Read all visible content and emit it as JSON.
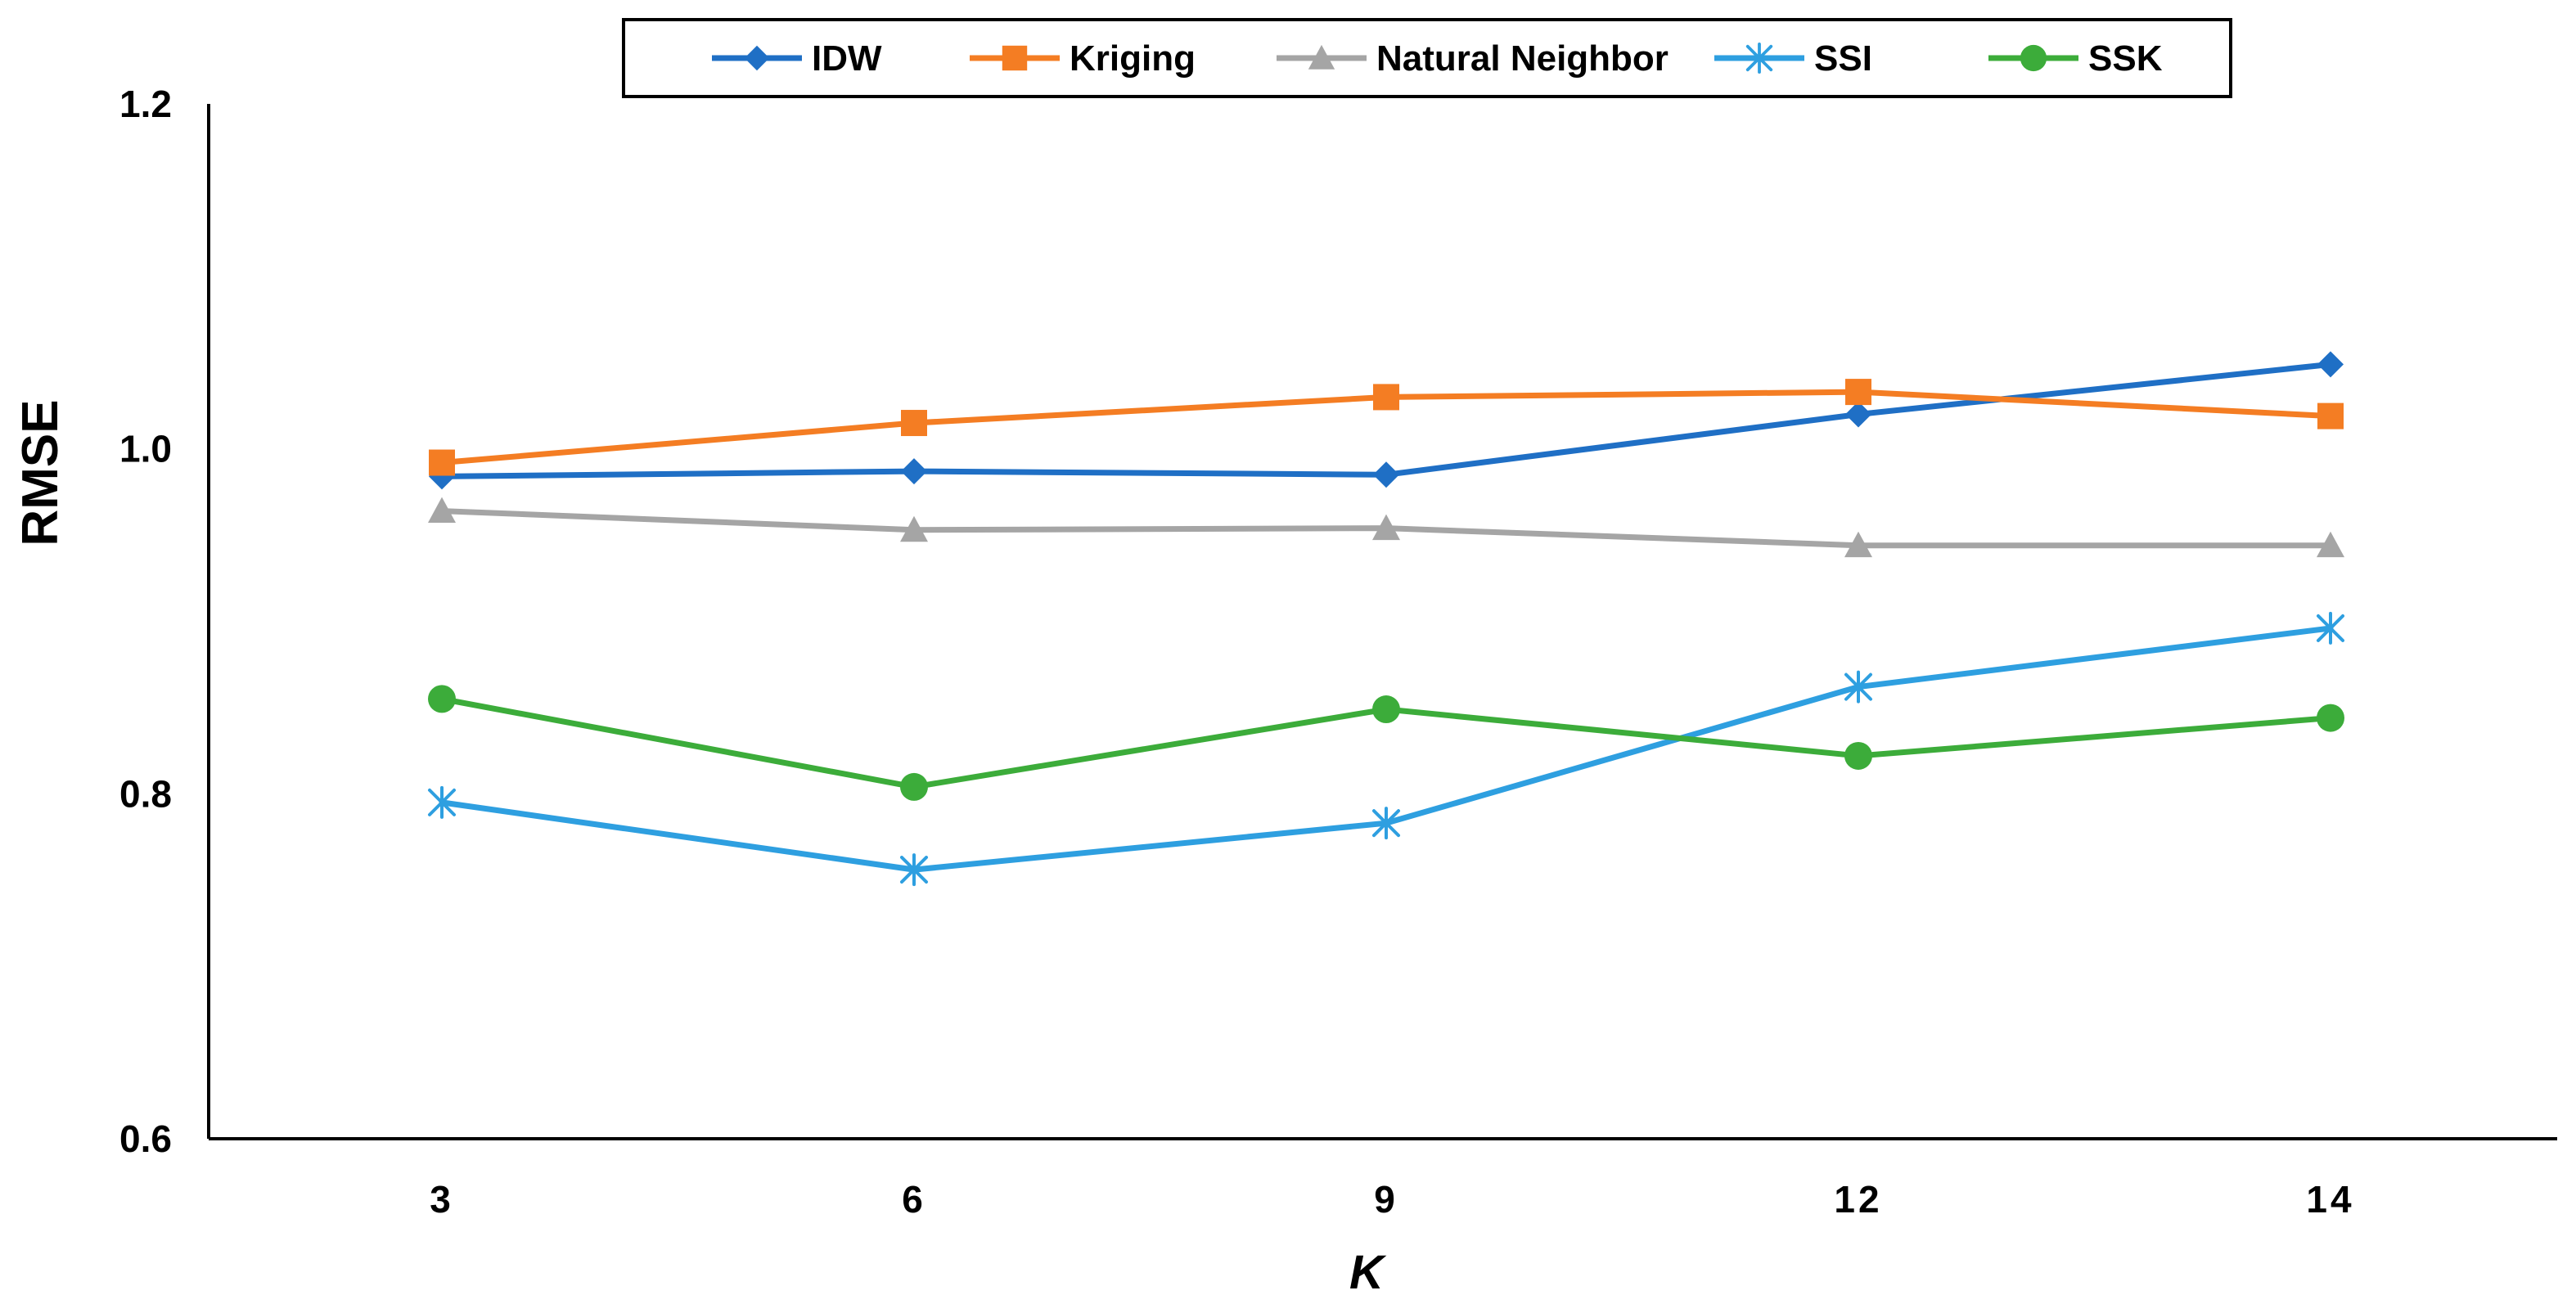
{
  "chart_data": {
    "type": "line",
    "title": "",
    "xlabel": "K",
    "ylabel": "RMSE",
    "categories": [
      "3",
      "6",
      "9",
      "12",
      "14"
    ],
    "ylim": [
      0.6,
      1.2
    ],
    "yticks": [
      "0.6",
      "0.8",
      "1.0",
      "1.2"
    ],
    "ytick_values": [
      0.6,
      0.8,
      1.0,
      1.2
    ],
    "grid": false,
    "legend_position": "top-center",
    "series": [
      {
        "name": "IDW",
        "color": "#1f6fc5",
        "marker": "diamond",
        "values": [
          0.984,
          0.987,
          0.985,
          1.02,
          1.049
        ]
      },
      {
        "name": "Kriging",
        "color": "#f47d23",
        "marker": "square",
        "values": [
          0.992,
          1.015,
          1.03,
          1.033,
          1.019
        ]
      },
      {
        "name": "Natural Neighbor",
        "color": "#a5a5a5",
        "marker": "triangle",
        "values": [
          0.964,
          0.953,
          0.954,
          0.944,
          0.944
        ]
      },
      {
        "name": "SSI",
        "color": "#2e9fe0",
        "marker": "asterisk",
        "values": [
          0.795,
          0.756,
          0.783,
          0.862,
          0.896
        ]
      },
      {
        "name": "SSK",
        "color": "#3cac3a",
        "marker": "circle",
        "values": [
          0.855,
          0.804,
          0.849,
          0.822,
          0.844
        ]
      }
    ]
  }
}
